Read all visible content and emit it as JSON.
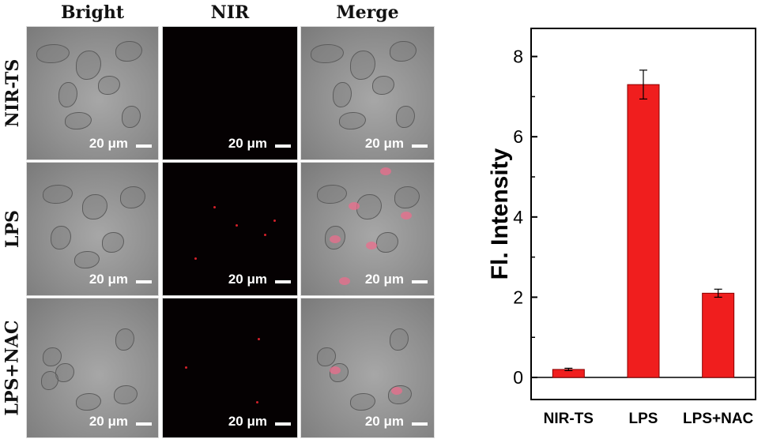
{
  "columns": [
    "Bright",
    "NIR",
    "Merge"
  ],
  "rows": [
    "NIR-TS",
    "LPS",
    "LPS+NAC"
  ],
  "scale_bar_label": "20 μm",
  "chart_data": {
    "type": "bar",
    "categories": [
      "NIR-TS",
      "LPS",
      "LPS+NAC"
    ],
    "values": [
      0.2,
      7.3,
      2.1
    ],
    "errors": [
      0.03,
      0.36,
      0.1
    ],
    "ylabel": "Fl. Intensity",
    "xlabel": "",
    "title": "",
    "ylim": [
      -0.55,
      8.7
    ],
    "yticks": [
      0,
      2,
      4,
      6,
      8
    ],
    "bar_color": "#f01e1e",
    "grid": false
  }
}
